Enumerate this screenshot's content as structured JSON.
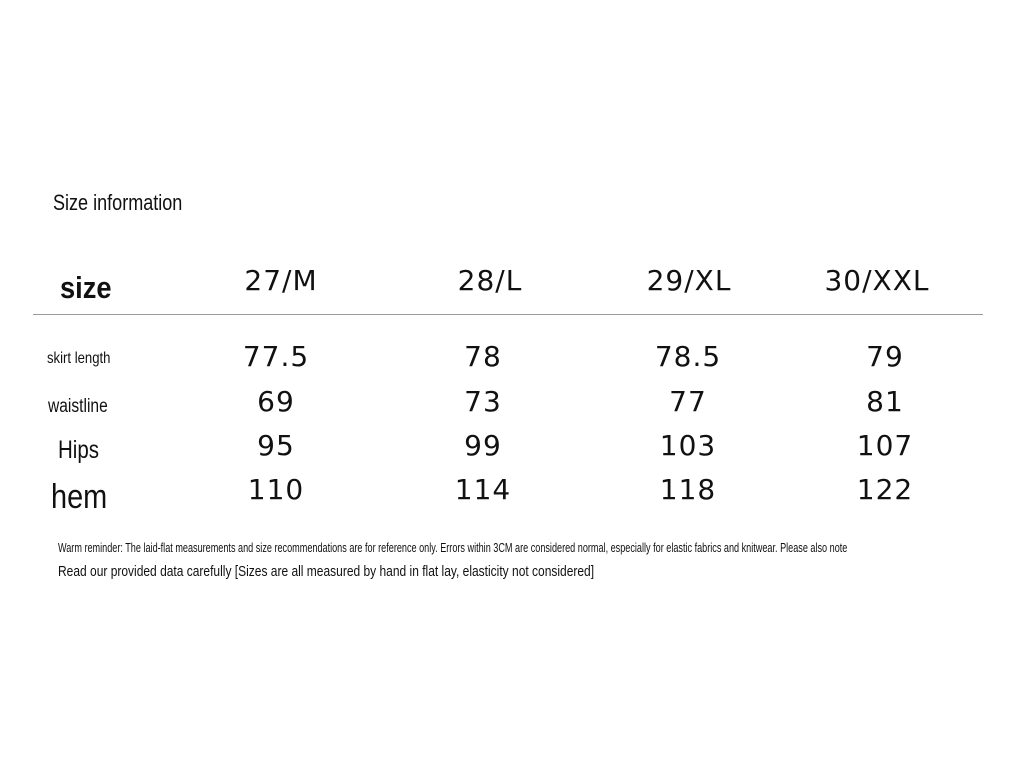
{
  "title": "Size information",
  "table": {
    "size_label": "size",
    "columns": [
      "27/M",
      "28/L",
      "29/XL",
      "30/XXL"
    ],
    "rows": [
      {
        "label": "skirt length",
        "values": [
          "77.5",
          "78",
          "78.5",
          "79"
        ]
      },
      {
        "label": "waistline",
        "values": [
          "69",
          "73",
          "77",
          "81"
        ]
      },
      {
        "label": "Hips",
        "values": [
          "95",
          "99",
          "103",
          "107"
        ]
      },
      {
        "label": "hem",
        "values": [
          "110",
          "114",
          "118",
          "122"
        ]
      }
    ]
  },
  "notes": {
    "line1": "Warm reminder: The laid-flat measurements and size recommendations are for reference only. Errors within 3CM are considered normal, especially for elastic fabrics and knitwear. Please also note",
    "line2": "Read our provided data carefully [Sizes are all measured by hand in flat lay, elasticity not considered]"
  }
}
